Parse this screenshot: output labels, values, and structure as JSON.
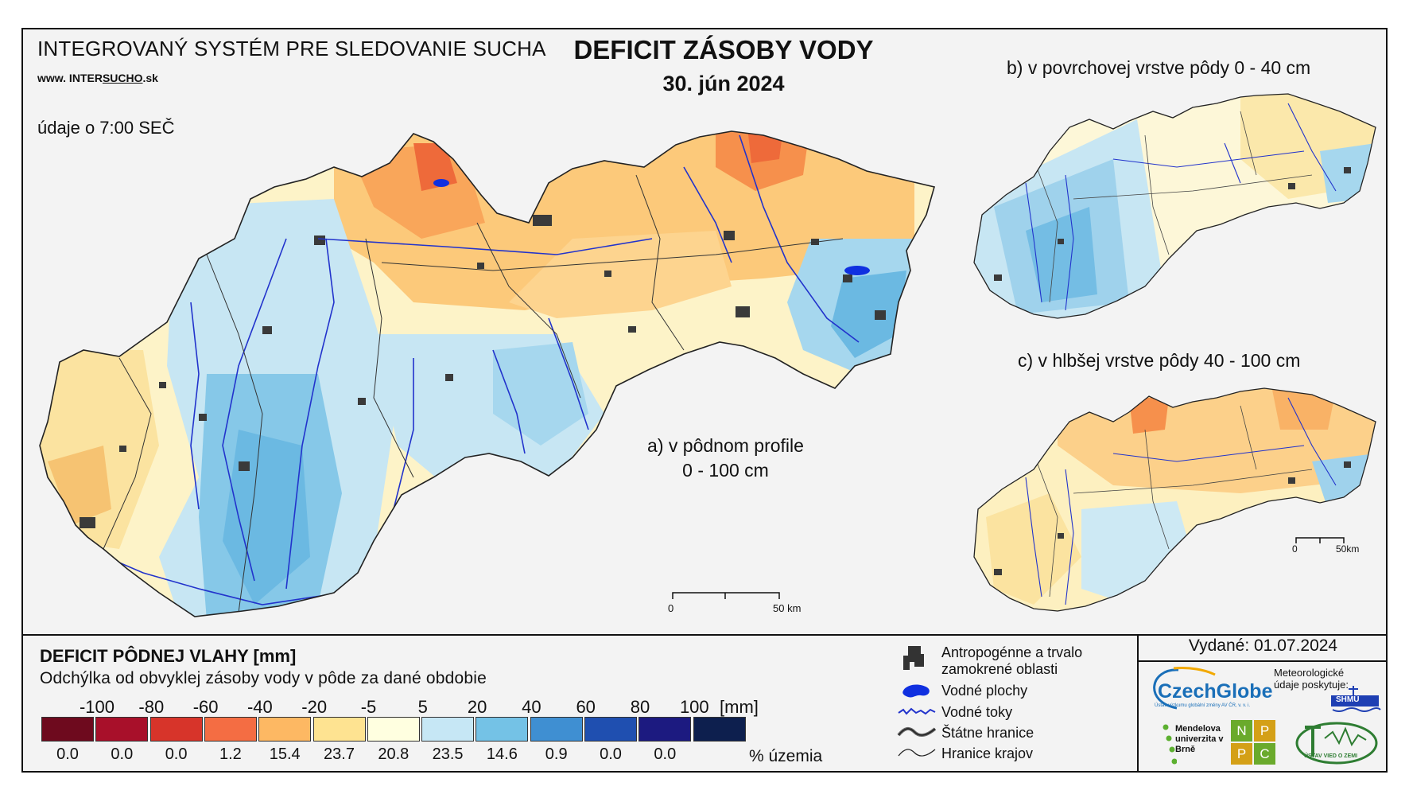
{
  "header": {
    "system_title": "INTEGROVANÝ SYSTÉM PRE SLEDOVANIE SUCHA",
    "website_prefix": "www. INTER",
    "website_brand": "SUCHO",
    "website_suffix": ".sk",
    "time_note": "údaje o 7:00 SEČ",
    "main_title": "DEFICIT ZÁSOBY VODY",
    "main_date": "30. jún 2024"
  },
  "panels": {
    "a_label_line1": "a) v pôdnom profile",
    "a_label_line2": "0 - 100 cm",
    "b_label": "b) v povrchovej vrstve pôdy 0 - 40 cm",
    "c_label": "c) v hlbšej vrstve pôdy 40 - 100 cm"
  },
  "scalebars": {
    "main_start": "0",
    "main_end": "50 km",
    "small_start": "0",
    "small_end": "50km"
  },
  "legend": {
    "title": "DEFICIT PÔDNEJ VLAHY [mm]",
    "subtitle": "Odchýlka od obvyklej zásoby vody v pôde za dané obdobie",
    "unit": "[mm]",
    "percent_unit": "% územia",
    "thresholds": [
      "-100",
      "-80",
      "-60",
      "-40",
      "-20",
      "-5",
      "5",
      "20",
      "40",
      "60",
      "80",
      "100"
    ],
    "classes": [
      {
        "color": "#6e0a1e",
        "percent": "0.0"
      },
      {
        "color": "#a8102a",
        "percent": "0.0"
      },
      {
        "color": "#d7342a",
        "percent": "0.0"
      },
      {
        "color": "#f46d43",
        "percent": "1.2"
      },
      {
        "color": "#fdb863",
        "percent": "15.4"
      },
      {
        "color": "#fee391",
        "percent": "23.7"
      },
      {
        "color": "#ffffe0",
        "percent": "20.8"
      },
      {
        "color": "#c6e7f5",
        "percent": "23.5"
      },
      {
        "color": "#74c2e6",
        "percent": "14.6"
      },
      {
        "color": "#3f8fd2",
        "percent": "0.9"
      },
      {
        "color": "#1f4fb0",
        "percent": "0.0"
      },
      {
        "color": "#1c1a80",
        "percent": "0.0"
      },
      {
        "color": "#0d1f4e",
        "percent": ""
      }
    ]
  },
  "map_legend": {
    "urban": "Antropogénne a trvalo zamokrené oblasti",
    "water_bodies": "Vodné plochy",
    "rivers": "Vodné toky",
    "state_border": "Štátne hranice",
    "region_border": "Hranice krajov"
  },
  "issued": "Vydané: 01.07.2024",
  "logos": {
    "czechglobe": "CzechGlobe",
    "czechglobe_sub": "Ústav výzkumu globální změny AV ČR, v. v. i.",
    "meteo_note": "Meteorologické údaje poskytuje:",
    "shmu": "SHMÚ",
    "mendel": "Mendelova univerzita v Brně",
    "nppc": [
      "N",
      "P",
      "P",
      "C"
    ],
    "uvz": "ÚSTAV VIED O ZEMI"
  }
}
